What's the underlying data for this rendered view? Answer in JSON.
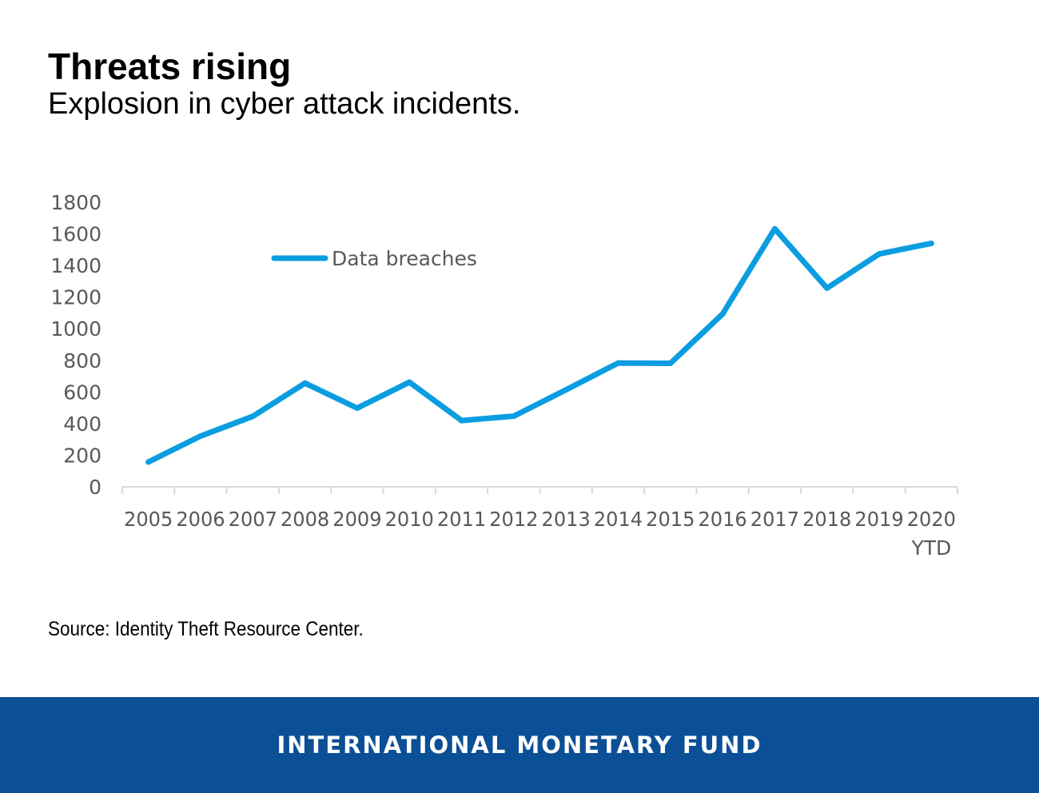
{
  "header": {
    "title": "Threats rising",
    "subtitle": "Explosion in cyber attack incidents."
  },
  "chart_data": {
    "type": "line",
    "title": "Threats rising",
    "subtitle": "Explosion in cyber attack incidents.",
    "categories": [
      "2005",
      "2006",
      "2007",
      "2008",
      "2009",
      "2010",
      "2011",
      "2012",
      "2013",
      "2014",
      "2015",
      "2016",
      "2017",
      "2018",
      "2019",
      "2020"
    ],
    "category_sublabels": [
      "",
      "",
      "",
      "",
      "",
      "",
      "",
      "",
      "",
      "",
      "",
      "",
      "",
      "",
      "",
      "YTD"
    ],
    "series": [
      {
        "name": "Data breaches",
        "color": "#0a9ee0",
        "values": [
          157,
          321,
          446,
          656,
          498,
          662,
          419,
          447,
          614,
          783,
          781,
          1093,
          1632,
          1257,
          1473,
          1540
        ]
      }
    ],
    "yticks": [
      "0",
      "200",
      "400",
      "600",
      "800",
      "1000",
      "1200",
      "1400",
      "1600",
      "1800"
    ],
    "ylim": [
      0,
      1800
    ],
    "xlabel": "",
    "ylabel": "",
    "grid": false,
    "legend": "top-left",
    "axis_color": "#d9d9d9",
    "tick_label_color": "#595959"
  },
  "source": "Source: Identity Theft Resource Center.",
  "footer": {
    "label": "INTERNATIONAL MONETARY FUND",
    "background": "#0b4f96"
  }
}
